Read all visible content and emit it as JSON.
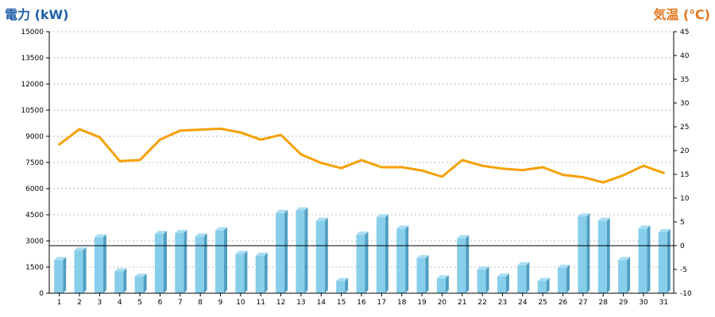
{
  "chart_data": {
    "type": "bar",
    "title_left": "電力 (kW)",
    "title_right": "気温 (℃)",
    "categories": [
      "1",
      "2",
      "3",
      "4",
      "5",
      "6",
      "7",
      "8",
      "9",
      "10",
      "11",
      "12",
      "13",
      "14",
      "15",
      "16",
      "17",
      "18",
      "19",
      "20",
      "21",
      "22",
      "23",
      "24",
      "25",
      "26",
      "27",
      "28",
      "29",
      "30",
      "31"
    ],
    "y_left": {
      "min": 0,
      "max": 15000,
      "ticks": [
        0,
        1500,
        3000,
        4500,
        6000,
        7500,
        9000,
        10500,
        12000,
        13500,
        15000
      ]
    },
    "y_right": {
      "min": -10,
      "max": 45,
      "ticks": [
        -10,
        -5,
        0,
        5,
        10,
        15,
        20,
        25,
        30,
        35,
        40,
        45
      ]
    },
    "grid": true,
    "series": [
      {
        "kind": "bar",
        "axis": "left",
        "values": [
          1900,
          2450,
          3200,
          1250,
          950,
          3400,
          3450,
          3250,
          3600,
          2250,
          2150,
          4600,
          4750,
          4150,
          700,
          3350,
          4350,
          3700,
          2000,
          850,
          3150,
          1350,
          950,
          1600,
          700,
          1450,
          4400,
          4150,
          1900,
          3700,
          3500
        ]
      },
      {
        "kind": "line",
        "axis": "right",
        "values": [
          21.3,
          24.5,
          22.8,
          17.8,
          18.0,
          22.3,
          24.2,
          24.4,
          24.6,
          23.8,
          22.3,
          23.3,
          19.2,
          17.4,
          16.3,
          18.0,
          16.5,
          16.5,
          15.8,
          14.5,
          18.0,
          16.8,
          16.2,
          15.9,
          16.5,
          14.9,
          14.4,
          13.3,
          14.8,
          16.8,
          15.3
        ]
      }
    ],
    "colors": {
      "bar_front": "#87ceeb",
      "bar_top": "#a9ddf2",
      "bar_side": "#4f9ec1",
      "line": "#f5a000",
      "title_left": "#1f5fa8",
      "title_right": "#e2761f"
    }
  }
}
